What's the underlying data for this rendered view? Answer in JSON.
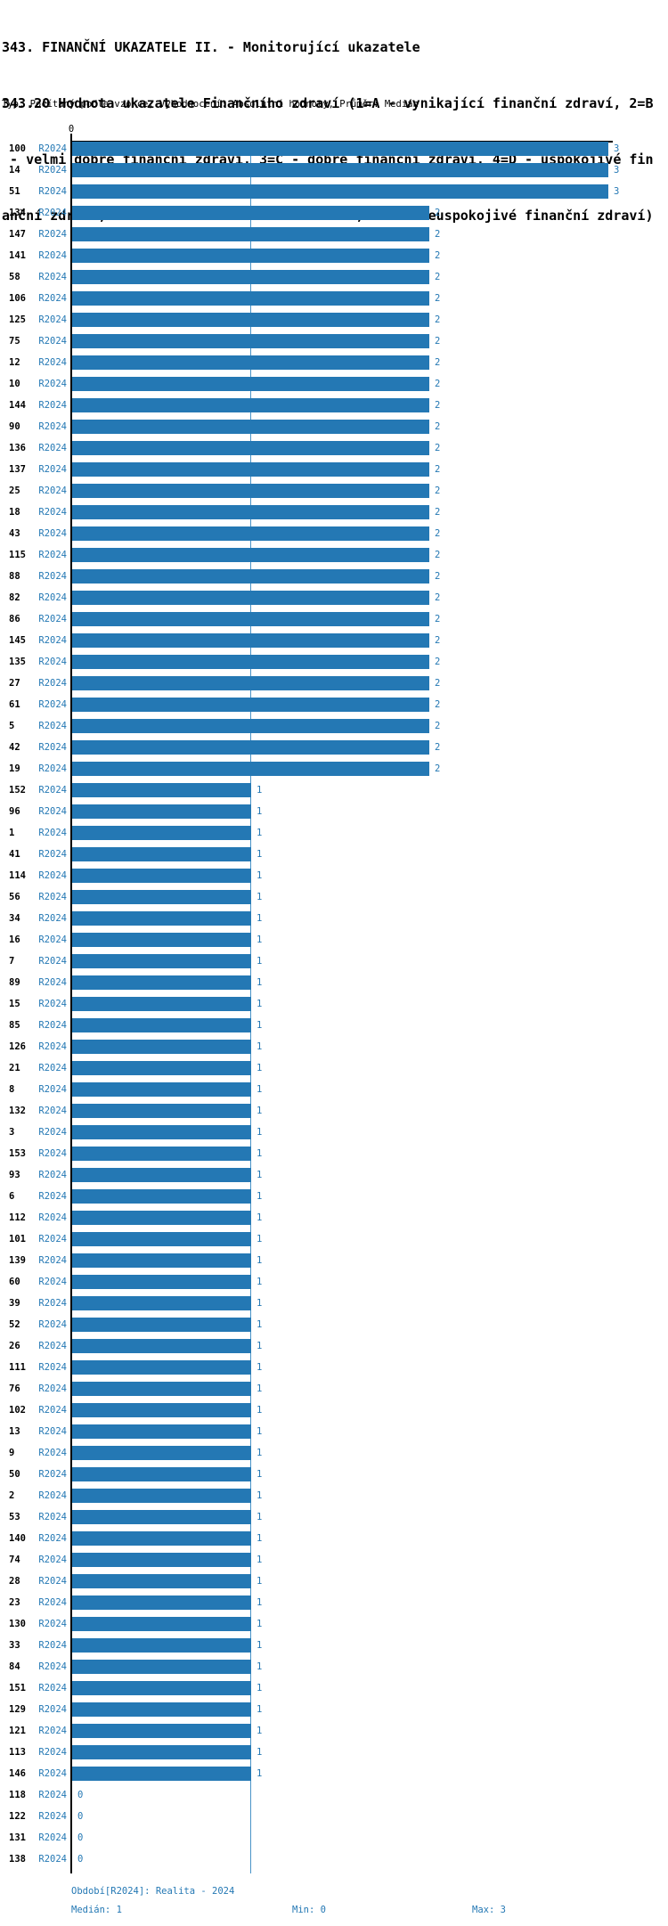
{
  "title": "343. FINANČNÍ UKAZATELE II. - Monitorující ukazatele",
  "subtitle_lines": [
    "343.20 Hodnota ukazatele Finančního zdraví (1=A - vynikající finanční zdraví, 2=B",
    " - velmi dobré finanční zdraví, 3=C - dobré finanční zdraví, 4=D - uspokojivé fin",
    "anční zdraví, 5=E - rizikové finanční zdraví, 6=F - neuspokojivé finanční zdraví)"
  ],
  "meta_line": "Typ: Počítaný podle vzorce, Vyhodnocení: Absolutní hodnoty, Průměr: Medián",
  "chart_data": {
    "type": "bar",
    "orientation": "horizontal",
    "title": "343.20 Hodnota ukazatele Finančního zdraví",
    "series_label": "R2024",
    "axis": {
      "zero_label": "0",
      "min": 0,
      "max": 3
    },
    "median_value": 1,
    "grid": "median-line-only",
    "colors": {
      "bar": "#2478b4",
      "blue_text": "#2478b4",
      "median_line": "#4a94c8",
      "axis": "#000000"
    },
    "rows": [
      {
        "id": "100",
        "period": "R2024",
        "value": 3
      },
      {
        "id": "14",
        "period": "R2024",
        "value": 3
      },
      {
        "id": "51",
        "period": "R2024",
        "value": 3
      },
      {
        "id": "134",
        "period": "R2024",
        "value": 2
      },
      {
        "id": "147",
        "period": "R2024",
        "value": 2
      },
      {
        "id": "141",
        "period": "R2024",
        "value": 2
      },
      {
        "id": "58",
        "period": "R2024",
        "value": 2
      },
      {
        "id": "106",
        "period": "R2024",
        "value": 2
      },
      {
        "id": "125",
        "period": "R2024",
        "value": 2
      },
      {
        "id": "75",
        "period": "R2024",
        "value": 2
      },
      {
        "id": "12",
        "period": "R2024",
        "value": 2
      },
      {
        "id": "10",
        "period": "R2024",
        "value": 2
      },
      {
        "id": "144",
        "period": "R2024",
        "value": 2
      },
      {
        "id": "90",
        "period": "R2024",
        "value": 2
      },
      {
        "id": "136",
        "period": "R2024",
        "value": 2
      },
      {
        "id": "137",
        "period": "R2024",
        "value": 2
      },
      {
        "id": "25",
        "period": "R2024",
        "value": 2
      },
      {
        "id": "18",
        "period": "R2024",
        "value": 2
      },
      {
        "id": "43",
        "period": "R2024",
        "value": 2
      },
      {
        "id": "115",
        "period": "R2024",
        "value": 2
      },
      {
        "id": "88",
        "period": "R2024",
        "value": 2
      },
      {
        "id": "82",
        "period": "R2024",
        "value": 2
      },
      {
        "id": "86",
        "period": "R2024",
        "value": 2
      },
      {
        "id": "145",
        "period": "R2024",
        "value": 2
      },
      {
        "id": "135",
        "period": "R2024",
        "value": 2
      },
      {
        "id": "27",
        "period": "R2024",
        "value": 2
      },
      {
        "id": "61",
        "period": "R2024",
        "value": 2
      },
      {
        "id": "5",
        "period": "R2024",
        "value": 2
      },
      {
        "id": "42",
        "period": "R2024",
        "value": 2
      },
      {
        "id": "19",
        "period": "R2024",
        "value": 2
      },
      {
        "id": "152",
        "period": "R2024",
        "value": 1
      },
      {
        "id": "96",
        "period": "R2024",
        "value": 1
      },
      {
        "id": "1",
        "period": "R2024",
        "value": 1
      },
      {
        "id": "41",
        "period": "R2024",
        "value": 1
      },
      {
        "id": "114",
        "period": "R2024",
        "value": 1
      },
      {
        "id": "56",
        "period": "R2024",
        "value": 1
      },
      {
        "id": "34",
        "period": "R2024",
        "value": 1
      },
      {
        "id": "16",
        "period": "R2024",
        "value": 1
      },
      {
        "id": "7",
        "period": "R2024",
        "value": 1
      },
      {
        "id": "89",
        "period": "R2024",
        "value": 1
      },
      {
        "id": "15",
        "period": "R2024",
        "value": 1
      },
      {
        "id": "85",
        "period": "R2024",
        "value": 1
      },
      {
        "id": "126",
        "period": "R2024",
        "value": 1
      },
      {
        "id": "21",
        "period": "R2024",
        "value": 1
      },
      {
        "id": "8",
        "period": "R2024",
        "value": 1
      },
      {
        "id": "132",
        "period": "R2024",
        "value": 1
      },
      {
        "id": "3",
        "period": "R2024",
        "value": 1
      },
      {
        "id": "153",
        "period": "R2024",
        "value": 1
      },
      {
        "id": "93",
        "period": "R2024",
        "value": 1
      },
      {
        "id": "6",
        "period": "R2024",
        "value": 1
      },
      {
        "id": "112",
        "period": "R2024",
        "value": 1
      },
      {
        "id": "101",
        "period": "R2024",
        "value": 1
      },
      {
        "id": "139",
        "period": "R2024",
        "value": 1
      },
      {
        "id": "60",
        "period": "R2024",
        "value": 1
      },
      {
        "id": "39",
        "period": "R2024",
        "value": 1
      },
      {
        "id": "52",
        "period": "R2024",
        "value": 1
      },
      {
        "id": "26",
        "period": "R2024",
        "value": 1
      },
      {
        "id": "111",
        "period": "R2024",
        "value": 1
      },
      {
        "id": "76",
        "period": "R2024",
        "value": 1
      },
      {
        "id": "102",
        "period": "R2024",
        "value": 1
      },
      {
        "id": "13",
        "period": "R2024",
        "value": 1
      },
      {
        "id": "9",
        "period": "R2024",
        "value": 1
      },
      {
        "id": "50",
        "period": "R2024",
        "value": 1
      },
      {
        "id": "2",
        "period": "R2024",
        "value": 1
      },
      {
        "id": "53",
        "period": "R2024",
        "value": 1
      },
      {
        "id": "140",
        "period": "R2024",
        "value": 1
      },
      {
        "id": "74",
        "period": "R2024",
        "value": 1
      },
      {
        "id": "28",
        "period": "R2024",
        "value": 1
      },
      {
        "id": "23",
        "period": "R2024",
        "value": 1
      },
      {
        "id": "130",
        "period": "R2024",
        "value": 1
      },
      {
        "id": "33",
        "period": "R2024",
        "value": 1
      },
      {
        "id": "84",
        "period": "R2024",
        "value": 1
      },
      {
        "id": "151",
        "period": "R2024",
        "value": 1
      },
      {
        "id": "129",
        "period": "R2024",
        "value": 1
      },
      {
        "id": "121",
        "period": "R2024",
        "value": 1
      },
      {
        "id": "113",
        "period": "R2024",
        "value": 1
      },
      {
        "id": "146",
        "period": "R2024",
        "value": 1
      },
      {
        "id": "118",
        "period": "R2024",
        "value": 0
      },
      {
        "id": "122",
        "period": "R2024",
        "value": 0
      },
      {
        "id": "131",
        "period": "R2024",
        "value": 0
      },
      {
        "id": "138",
        "period": "R2024",
        "value": 0
      }
    ]
  },
  "footer": {
    "period_line": "Období[R2024]: Realita - 2024",
    "median_label": "Medián: 1",
    "min_label": "Min: 0",
    "max_label": "Max: 3"
  }
}
